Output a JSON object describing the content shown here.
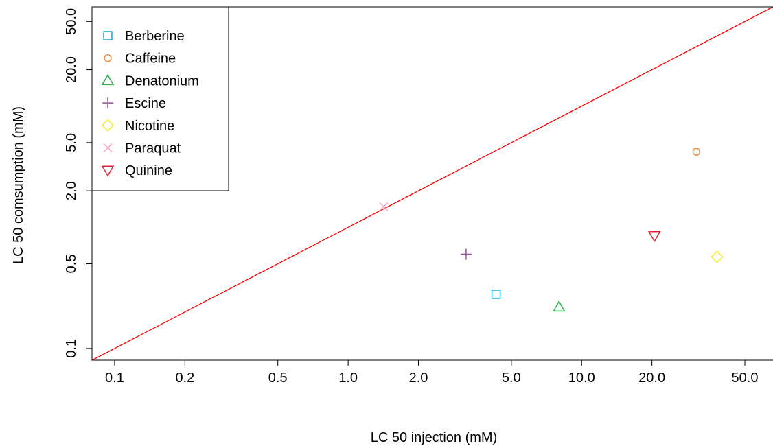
{
  "chart_data": {
    "type": "scatter",
    "title": "",
    "xlabel": "LC 50 injection (mM)",
    "ylabel": "LC 50 comsumption (mM)",
    "xscale": "log",
    "yscale": "log",
    "xlim": [
      0.08,
      66
    ],
    "ylim": [
      0.08,
      66
    ],
    "xticks": [
      0.1,
      0.2,
      0.5,
      1.0,
      2.0,
      5.0,
      10.0,
      20.0,
      50.0
    ],
    "xtick_labels": [
      "0.1",
      "0.2",
      "0.5",
      "1.0",
      "2.0",
      "5.0",
      "10.0",
      "20.0",
      "50.0"
    ],
    "yticks": [
      0.1,
      0.5,
      2.0,
      5.0,
      20.0,
      50.0
    ],
    "ytick_labels": [
      "0.1",
      "0.5",
      "2.0",
      "5.0",
      "20.0",
      "50.0"
    ],
    "legend_position": "top-left",
    "reference_line": {
      "type": "y=x",
      "color": "#ff0000"
    },
    "series": [
      {
        "name": "Berberine",
        "marker": "square",
        "color": "#1fa3d6",
        "x": 4.3,
        "y": 0.28
      },
      {
        "name": "Caffeine",
        "marker": "circle",
        "color": "#f08a3b",
        "x": 31,
        "y": 4.2
      },
      {
        "name": "Denatonium",
        "marker": "triangle",
        "color": "#2bb24c",
        "x": 8.0,
        "y": 0.22
      },
      {
        "name": "Escine",
        "marker": "plus",
        "color": "#9b4d9e",
        "x": 3.2,
        "y": 0.6
      },
      {
        "name": "Nicotine",
        "marker": "diamond",
        "color": "#f2ec30",
        "x": 38,
        "y": 0.57
      },
      {
        "name": "Paraquat",
        "marker": "cross",
        "color": "#f4a3c4",
        "x": 1.42,
        "y": 1.48
      },
      {
        "name": "Quinine",
        "marker": "triangle-down",
        "color": "#e3242b",
        "x": 20.5,
        "y": 0.85
      }
    ]
  }
}
